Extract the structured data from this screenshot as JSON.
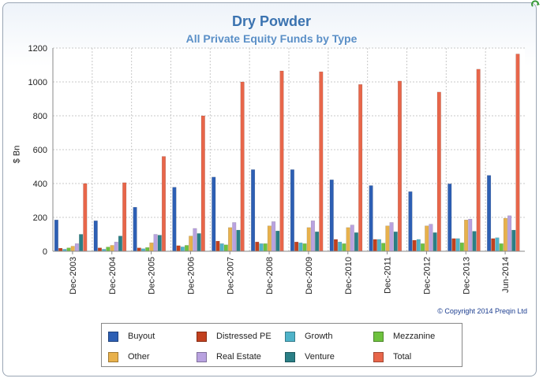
{
  "chart_data": {
    "type": "bar",
    "title": "Dry Powder",
    "subtitle": "All Private Equity Funds by Type",
    "ylabel": "$ Bn",
    "xlabel": "",
    "ylim": [
      0,
      1200
    ],
    "yticks": [
      0,
      200,
      400,
      600,
      800,
      1000,
      1200
    ],
    "grid": true,
    "legend_position": "bottom",
    "categories": [
      "Dec-2003",
      "Dec-2004",
      "Dec-2005",
      "Dec-2006",
      "Dec-2007",
      "Dec-2008",
      "Dec-2009",
      "Dec-2010",
      "Dec-2011",
      "Dec-2012",
      "Dec-2013",
      "Jun-2014"
    ],
    "series": [
      {
        "name": "Buyout",
        "color": "#2d5fb4",
        "values": [
          185,
          180,
          260,
          378,
          438,
          482,
          482,
          422,
          388,
          352,
          398,
          448
        ]
      },
      {
        "name": "Distressed PE",
        "color": "#c2401e",
        "values": [
          18,
          20,
          20,
          33,
          60,
          55,
          55,
          70,
          70,
          65,
          75,
          75
        ]
      },
      {
        "name": "Growth",
        "color": "#4fb3c9",
        "values": [
          12,
          12,
          15,
          26,
          45,
          45,
          50,
          55,
          70,
          70,
          75,
          80
        ]
      },
      {
        "name": "Mezzanine",
        "color": "#6ec23e",
        "values": [
          20,
          25,
          22,
          35,
          38,
          45,
          45,
          45,
          48,
          45,
          50,
          45
        ]
      },
      {
        "name": "Other",
        "color": "#e8b14c",
        "values": [
          30,
          35,
          50,
          90,
          140,
          150,
          140,
          140,
          150,
          150,
          185,
          195
        ]
      },
      {
        "name": "Real Estate",
        "color": "#b9a2e0",
        "values": [
          45,
          55,
          100,
          135,
          170,
          175,
          180,
          155,
          170,
          160,
          190,
          210
        ]
      },
      {
        "name": "Venture",
        "color": "#2a7f86",
        "values": [
          100,
          90,
          95,
          105,
          125,
          120,
          115,
          110,
          115,
          110,
          118,
          125
        ]
      },
      {
        "name": "Total",
        "color": "#e8664a",
        "values": [
          400,
          405,
          560,
          800,
          1000,
          1065,
          1060,
          985,
          1005,
          940,
          1075,
          1165
        ]
      }
    ]
  },
  "copyright": "© Copyright 2014 Preqin Ltd"
}
